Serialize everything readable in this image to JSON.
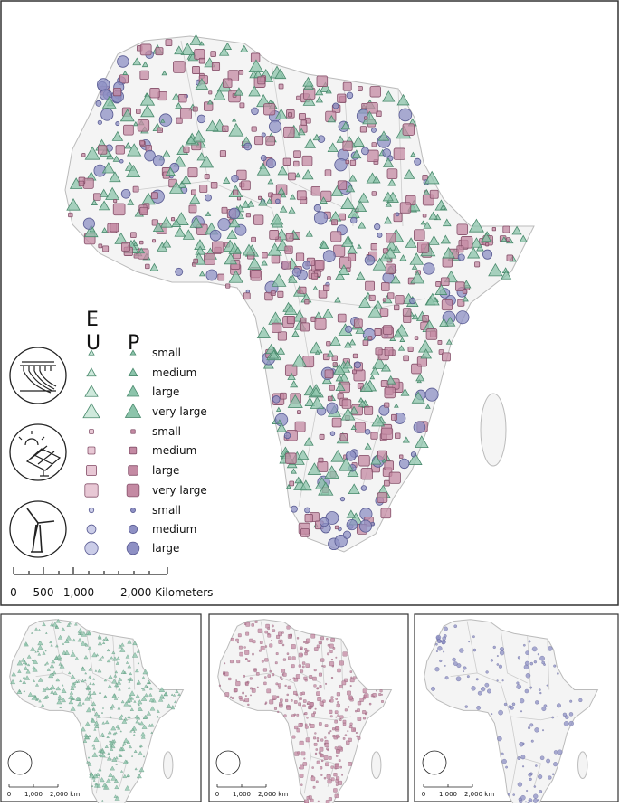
{
  "main_map": {
    "legend": {
      "headers": [
        "E",
        "U",
        "P"
      ],
      "groups": [
        {
          "sizes": [
            "small",
            "medium",
            "large",
            "very large"
          ]
        },
        {
          "sizes": [
            "small",
            "medium",
            "large",
            "very large"
          ]
        },
        {
          "sizes": [
            "small",
            "medium",
            "large"
          ]
        }
      ]
    },
    "scale_bar": {
      "labels": [
        "0",
        "500",
        "1,000",
        "2,000 Kilometers"
      ]
    }
  },
  "inset_maps": [
    {
      "scale_labels": [
        "0",
        "1,000",
        "2,000 km"
      ]
    },
    {
      "scale_labels": [
        "0",
        "1,000",
        "2,000 km"
      ]
    },
    {
      "scale_labels": [
        "0",
        "1,000",
        "2,000 km"
      ]
    }
  ]
}
